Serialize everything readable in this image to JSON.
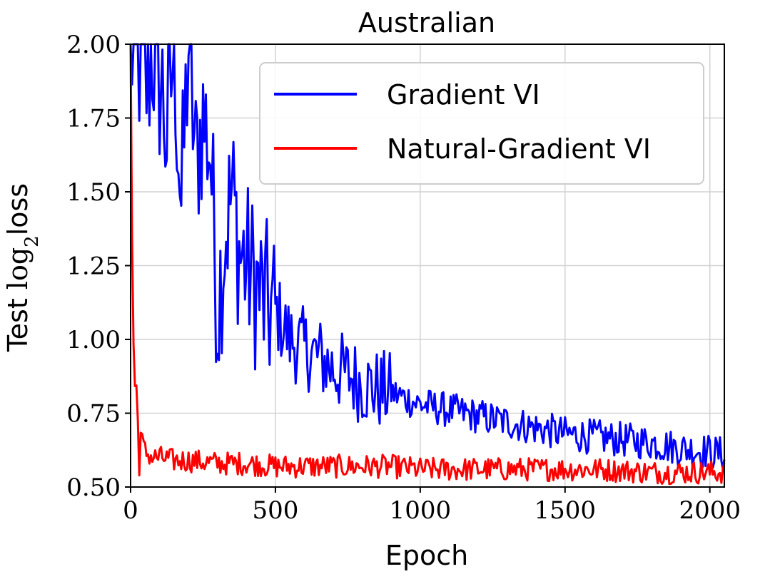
{
  "chart_data": {
    "type": "line",
    "title": "Australian",
    "xlabel": "Epoch",
    "ylabel_prefix": "Test ",
    "ylabel_log": "log",
    "ylabel_sub": "2",
    "ylabel_suffix": "loss",
    "xlim": [
      0,
      2050
    ],
    "ylim": [
      0.5,
      2.0
    ],
    "xticks": [
      0,
      500,
      1000,
      1500,
      2000
    ],
    "yticks": [
      0.5,
      0.75,
      1.0,
      1.25,
      1.5,
      1.75,
      2.0
    ],
    "xtick_labels": [
      "0",
      "500",
      "1000",
      "1500",
      "2000"
    ],
    "ytick_labels": [
      "0.50",
      "0.75",
      "1.00",
      "1.25",
      "1.50",
      "1.75",
      "2.00"
    ],
    "grid": true,
    "legend_position": "top-right",
    "series": [
      {
        "name": "Gradient VI",
        "color": "#0000ff",
        "x": [
          0,
          25,
          50,
          75,
          100,
          125,
          150,
          175,
          200,
          225,
          250,
          275,
          300,
          325,
          350,
          375,
          400,
          425,
          450,
          475,
          500,
          550,
          600,
          650,
          700,
          750,
          800,
          850,
          900,
          950,
          1000,
          1100,
          1200,
          1300,
          1400,
          1500,
          1600,
          1700,
          1800,
          1900,
          2000,
          2050
        ],
        "y": [
          2.0,
          2.0,
          1.85,
          2.0,
          1.9,
          1.7,
          2.0,
          1.45,
          2.0,
          1.6,
          1.75,
          1.65,
          1.1,
          1.35,
          1.5,
          1.3,
          1.25,
          1.2,
          1.15,
          1.1,
          1.1,
          1.0,
          0.97,
          0.94,
          0.9,
          0.88,
          0.85,
          0.83,
          0.82,
          0.8,
          0.78,
          0.76,
          0.74,
          0.72,
          0.7,
          0.68,
          0.67,
          0.66,
          0.65,
          0.63,
          0.62,
          0.61
        ]
      },
      {
        "name": "Natural-Gradient VI",
        "color": "#ff0000",
        "x": [
          0,
          5,
          10,
          15,
          20,
          25,
          30,
          40,
          50,
          75,
          100,
          150,
          200,
          300,
          400,
          500,
          600,
          700,
          800,
          900,
          1000,
          1200,
          1400,
          1600,
          1800,
          2000,
          2050
        ],
        "y": [
          2.0,
          1.35,
          1.0,
          0.85,
          0.8,
          0.72,
          0.68,
          0.65,
          0.62,
          0.6,
          0.6,
          0.59,
          0.59,
          0.58,
          0.58,
          0.57,
          0.57,
          0.57,
          0.57,
          0.57,
          0.56,
          0.56,
          0.56,
          0.56,
          0.55,
          0.55,
          0.55
        ]
      }
    ]
  }
}
